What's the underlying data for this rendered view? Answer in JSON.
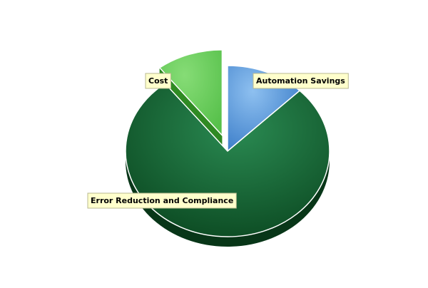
{
  "chart_data": {
    "type": "pie",
    "title": "",
    "slices": [
      {
        "label": "Automation Savings",
        "value": 12.5,
        "color": "#4a8fd8"
      },
      {
        "label": "Error Reduction and Compliance",
        "value": 77.0,
        "color": "#1a6a3a"
      },
      {
        "label": "Cost",
        "value": 10.5,
        "color": "#4fbf3f"
      }
    ],
    "style": "3d",
    "exploded_slice": "Cost",
    "label_background": "#ffffcc"
  }
}
